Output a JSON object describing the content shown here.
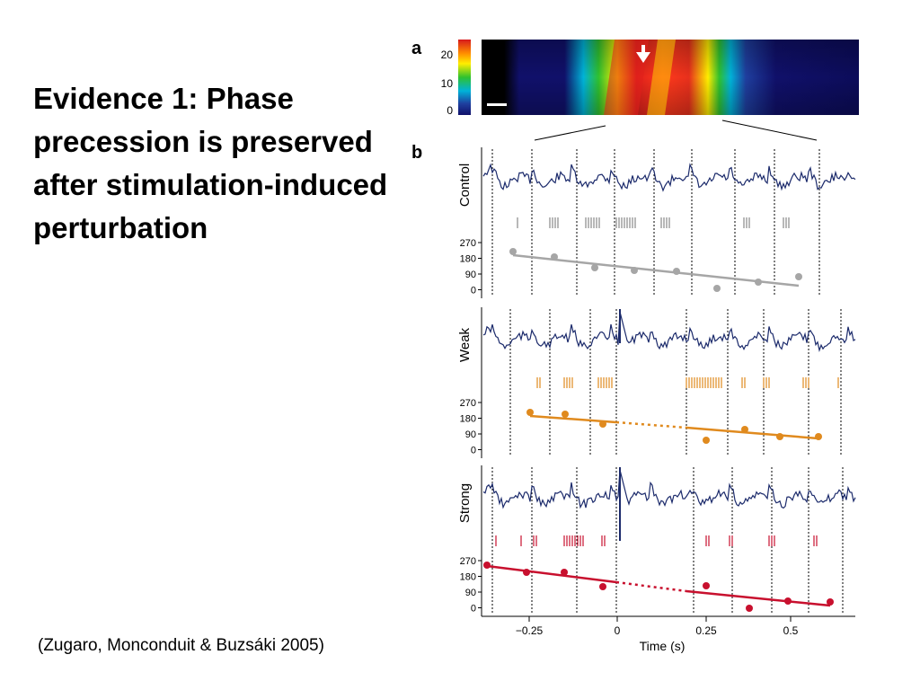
{
  "slide": {
    "title": "Evidence 1: Phase precession is preserved after stimulation-induced perturbation",
    "citation": "(Zugaro, Monconduit & Buzsáki 2005)"
  },
  "figure": {
    "panel_a_label": "a",
    "panel_b_label": "b",
    "colorbar_ticks": [
      "20",
      "10",
      "0"
    ],
    "colorbar_colors": [
      "#d7191c",
      "#ff8c00",
      "#ffee00",
      "#2fc12f",
      "#00b3d9",
      "#1f3f9f",
      "#10106a"
    ],
    "panels": [
      {
        "name": "Control",
        "trace_color": "#1b2a6b",
        "spike_color": "#888888",
        "line_color": "#a6a6a6",
        "yticks": [
          "270",
          "180",
          "90",
          "0"
        ]
      },
      {
        "name": "Weak",
        "trace_color": "#1b2a6b",
        "spike_color": "#e08a1e",
        "line_color": "#e08a1e",
        "yticks": [
          "270",
          "180",
          "90",
          "0"
        ]
      },
      {
        "name": "Strong",
        "trace_color": "#1b2a6b",
        "spike_color": "#c8102e",
        "line_color": "#c8102e",
        "yticks": [
          "270",
          "180",
          "90",
          "0"
        ]
      }
    ],
    "xticks": [
      "−0.25",
      "0",
      "0.25",
      "0.5"
    ],
    "xlabel": "Time (s)"
  }
}
